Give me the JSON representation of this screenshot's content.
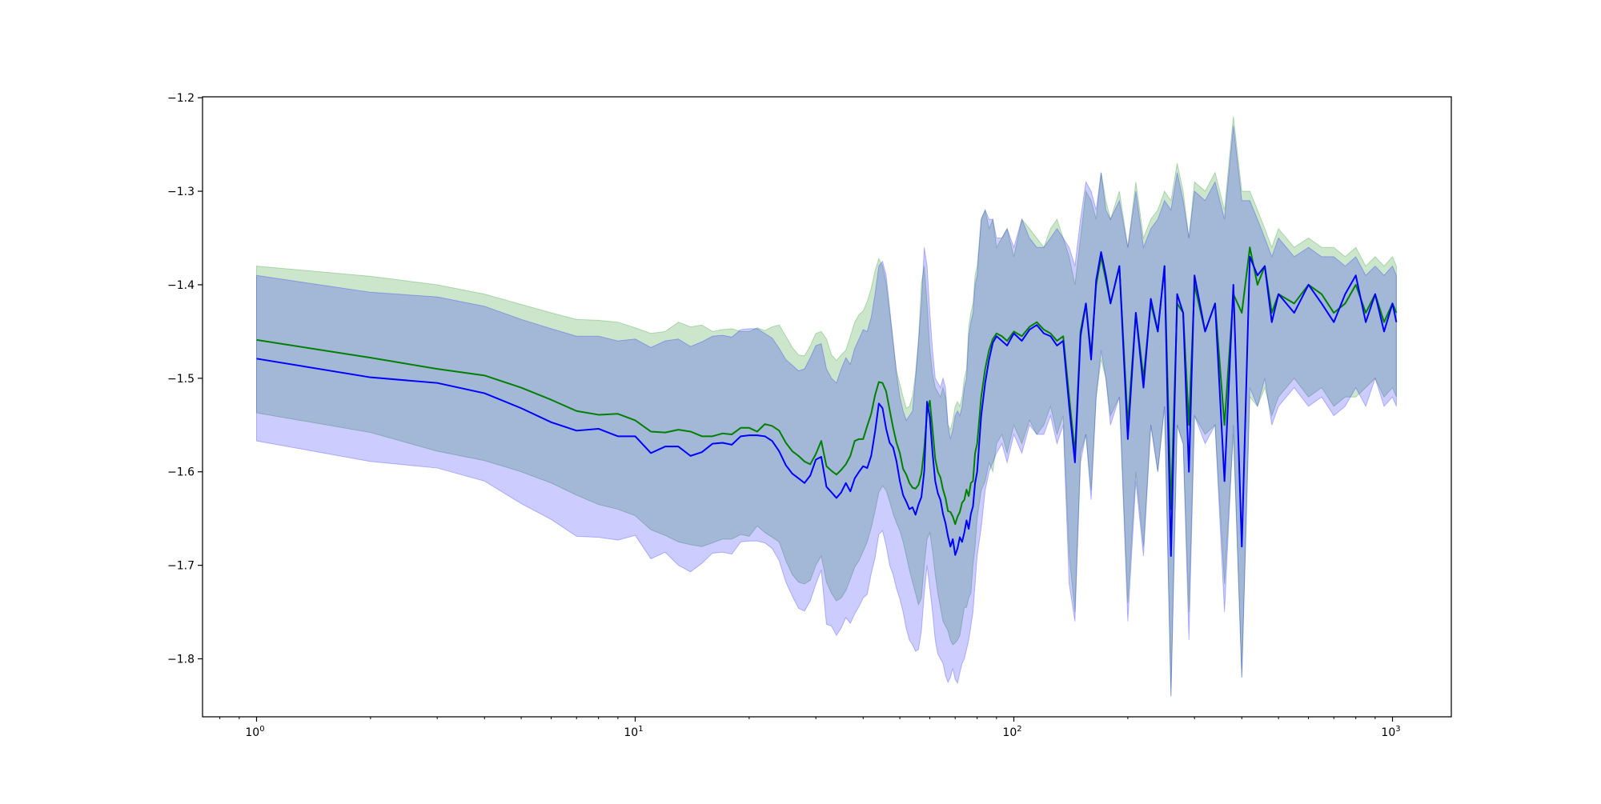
{
  "chart_data": {
    "type": "line",
    "title": "",
    "xlabel": "",
    "ylabel": "",
    "xscale": "log",
    "xlim": [
      0.72,
      1430
    ],
    "ylim": [
      -1.862,
      -1.199
    ],
    "grid": false,
    "x_ticks": [
      {
        "value": 1,
        "base": "10",
        "exp": "0"
      },
      {
        "value": 10,
        "base": "10",
        "exp": "1"
      },
      {
        "value": 100,
        "base": "10",
        "exp": "2"
      },
      {
        "value": 1000,
        "base": "10",
        "exp": "3"
      }
    ],
    "y_ticks": [
      {
        "value": -1.2,
        "label": "−1.2"
      },
      {
        "value": -1.3,
        "label": "−1.3"
      },
      {
        "value": -1.4,
        "label": "−1.4"
      },
      {
        "value": -1.5,
        "label": "−1.5"
      },
      {
        "value": -1.6,
        "label": "−1.6"
      },
      {
        "value": -1.7,
        "label": "−1.7"
      },
      {
        "value": -1.8,
        "label": "−1.8"
      }
    ],
    "series": [
      {
        "color": "#008000",
        "band_color": "#008000",
        "band_opacity": 0.2,
        "x": [
          1,
          2,
          3,
          4,
          5,
          6,
          7,
          8,
          9,
          10,
          11,
          12,
          13,
          14,
          15,
          16,
          17,
          18,
          19,
          20,
          21,
          22,
          23,
          24,
          25,
          26,
          27,
          28,
          29,
          30,
          31,
          32,
          33,
          34,
          35,
          36,
          37,
          38,
          39,
          40,
          41,
          42,
          43,
          44,
          45,
          46,
          47,
          48,
          49,
          50,
          51,
          52,
          53,
          54,
          55,
          56,
          57,
          58,
          59,
          60,
          61,
          62,
          63,
          64,
          65,
          66,
          67,
          68,
          69,
          70,
          71,
          72,
          73,
          74,
          75,
          76,
          77,
          78,
          79,
          80,
          82,
          84,
          86,
          88,
          90,
          93,
          96,
          100,
          105,
          110,
          115,
          120,
          125,
          130,
          135,
          140,
          145,
          150,
          155,
          160,
          165,
          170,
          175,
          180,
          190,
          200,
          210,
          220,
          230,
          240,
          250,
          260,
          270,
          280,
          290,
          300,
          320,
          340,
          360,
          380,
          400,
          420,
          440,
          460,
          480,
          500,
          550,
          600,
          650,
          700,
          750,
          800,
          850,
          900,
          950,
          1000,
          1024
        ],
        "mean": [
          -1.459,
          -1.478,
          -1.49,
          -1.497,
          -1.51,
          -1.523,
          -1.535,
          -1.539,
          -1.538,
          -1.545,
          -1.557,
          -1.558,
          -1.555,
          -1.557,
          -1.562,
          -1.562,
          -1.559,
          -1.56,
          -1.553,
          -1.553,
          -1.557,
          -1.549,
          -1.551,
          -1.556,
          -1.569,
          -1.578,
          -1.583,
          -1.589,
          -1.592,
          -1.581,
          -1.567,
          -1.594,
          -1.599,
          -1.603,
          -1.598,
          -1.592,
          -1.583,
          -1.567,
          -1.565,
          -1.565,
          -1.551,
          -1.538,
          -1.518,
          -1.504,
          -1.505,
          -1.514,
          -1.534,
          -1.553,
          -1.569,
          -1.58,
          -1.597,
          -1.603,
          -1.612,
          -1.617,
          -1.618,
          -1.614,
          -1.602,
          -1.575,
          -1.537,
          -1.524,
          -1.555,
          -1.586,
          -1.6,
          -1.606,
          -1.619,
          -1.628,
          -1.642,
          -1.643,
          -1.648,
          -1.656,
          -1.648,
          -1.643,
          -1.633,
          -1.63,
          -1.619,
          -1.626,
          -1.612,
          -1.61,
          -1.58,
          -1.57,
          -1.52,
          -1.49,
          -1.47,
          -1.458,
          -1.452,
          -1.455,
          -1.46,
          -1.45,
          -1.455,
          -1.445,
          -1.44,
          -1.448,
          -1.452,
          -1.46,
          -1.455,
          -1.52,
          -1.58,
          -1.45,
          -1.42,
          -1.475,
          -1.4,
          -1.37,
          -1.395,
          -1.42,
          -1.38,
          -1.55,
          -1.43,
          -1.5,
          -1.42,
          -1.45,
          -1.38,
          -1.64,
          -1.42,
          -1.43,
          -1.55,
          -1.4,
          -1.45,
          -1.42,
          -1.55,
          -1.41,
          -1.43,
          -1.36,
          -1.4,
          -1.38,
          -1.43,
          -1.41,
          -1.42,
          -1.4,
          -1.41,
          -1.43,
          -1.42,
          -1.4,
          -1.43,
          -1.41,
          -1.44,
          -1.42,
          -1.43
        ],
        "upper": [
          -1.38,
          -1.391,
          -1.4,
          -1.41,
          -1.421,
          -1.43,
          -1.437,
          -1.438,
          -1.44,
          -1.446,
          -1.452,
          -1.45,
          -1.44,
          -1.445,
          -1.443,
          -1.45,
          -1.448,
          -1.447,
          -1.45,
          -1.45,
          -1.446,
          -1.449,
          -1.445,
          -1.443,
          -1.455,
          -1.467,
          -1.475,
          -1.476,
          -1.465,
          -1.452,
          -1.45,
          -1.458,
          -1.475,
          -1.481,
          -1.475,
          -1.47,
          -1.455,
          -1.44,
          -1.432,
          -1.428,
          -1.418,
          -1.404,
          -1.385,
          -1.372,
          -1.38,
          -1.398,
          -1.43,
          -1.462,
          -1.492,
          -1.506,
          -1.52,
          -1.532,
          -1.53,
          -1.519,
          -1.495,
          -1.46,
          -1.398,
          -1.38,
          -1.42,
          -1.468,
          -1.495,
          -1.51,
          -1.515,
          -1.52,
          -1.51,
          -1.52,
          -1.55,
          -1.555,
          -1.545,
          -1.53,
          -1.525,
          -1.53,
          -1.52,
          -1.5,
          -1.49,
          -1.445,
          -1.43,
          -1.42,
          -1.39,
          -1.38,
          -1.33,
          -1.32,
          -1.34,
          -1.33,
          -1.36,
          -1.35,
          -1.34,
          -1.37,
          -1.33,
          -1.34,
          -1.35,
          -1.36,
          -1.34,
          -1.33,
          -1.35,
          -1.37,
          -1.4,
          -1.35,
          -1.3,
          -1.31,
          -1.33,
          -1.28,
          -1.31,
          -1.33,
          -1.3,
          -1.36,
          -1.29,
          -1.35,
          -1.33,
          -1.32,
          -1.3,
          -1.31,
          -1.27,
          -1.3,
          -1.35,
          -1.29,
          -1.3,
          -1.28,
          -1.32,
          -1.22,
          -1.3,
          -1.3,
          -1.32,
          -1.34,
          -1.36,
          -1.34,
          -1.36,
          -1.35,
          -1.36,
          -1.36,
          -1.37,
          -1.36,
          -1.38,
          -1.37,
          -1.38,
          -1.37,
          -1.38
        ],
        "lower": [
          -1.537,
          -1.558,
          -1.578,
          -1.588,
          -1.6,
          -1.612,
          -1.625,
          -1.635,
          -1.64,
          -1.647,
          -1.662,
          -1.668,
          -1.675,
          -1.678,
          -1.68,
          -1.676,
          -1.672,
          -1.672,
          -1.667,
          -1.669,
          -1.658,
          -1.665,
          -1.67,
          -1.675,
          -1.695,
          -1.71,
          -1.718,
          -1.72,
          -1.716,
          -1.7,
          -1.69,
          -1.718,
          -1.73,
          -1.738,
          -1.735,
          -1.727,
          -1.715,
          -1.702,
          -1.695,
          -1.685,
          -1.675,
          -1.66,
          -1.642,
          -1.622,
          -1.615,
          -1.62,
          -1.632,
          -1.645,
          -1.655,
          -1.663,
          -1.675,
          -1.69,
          -1.705,
          -1.718,
          -1.73,
          -1.742,
          -1.735,
          -1.7,
          -1.672,
          -1.665,
          -1.685,
          -1.71,
          -1.73,
          -1.745,
          -1.76,
          -1.765,
          -1.77,
          -1.78,
          -1.785,
          -1.783,
          -1.78,
          -1.775,
          -1.76,
          -1.745,
          -1.745,
          -1.735,
          -1.73,
          -1.7,
          -1.68,
          -1.65,
          -1.62,
          -1.61,
          -1.59,
          -1.6,
          -1.57,
          -1.56,
          -1.58,
          -1.55,
          -1.57,
          -1.545,
          -1.56,
          -1.55,
          -1.53,
          -1.56,
          -1.54,
          -1.69,
          -1.75,
          -1.58,
          -1.56,
          -1.62,
          -1.52,
          -1.48,
          -1.5,
          -1.54,
          -1.52,
          -1.74,
          -1.6,
          -1.68,
          -1.55,
          -1.6,
          -1.53,
          -1.84,
          -1.55,
          -1.57,
          -1.75,
          -1.54,
          -1.56,
          -1.55,
          -1.72,
          -1.56,
          -1.82,
          -1.52,
          -1.53,
          -1.51,
          -1.54,
          -1.52,
          -1.5,
          -1.52,
          -1.51,
          -1.53,
          -1.52,
          -1.52,
          -1.51,
          -1.5,
          -1.52,
          -1.51,
          -1.52
        ]
      },
      {
        "color": "#0000ff",
        "band_color": "#0000ff",
        "band_opacity": 0.2,
        "x": [
          1,
          2,
          3,
          4,
          5,
          6,
          7,
          8,
          9,
          10,
          11,
          12,
          13,
          14,
          15,
          16,
          17,
          18,
          19,
          20,
          21,
          22,
          23,
          24,
          25,
          26,
          27,
          28,
          29,
          30,
          31,
          32,
          33,
          34,
          35,
          36,
          37,
          38,
          39,
          40,
          41,
          42,
          43,
          44,
          45,
          46,
          47,
          48,
          49,
          50,
          51,
          52,
          53,
          54,
          55,
          56,
          57,
          58,
          59,
          60,
          61,
          62,
          63,
          64,
          65,
          66,
          67,
          68,
          69,
          70,
          71,
          72,
          73,
          74,
          75,
          76,
          77,
          78,
          79,
          80,
          82,
          84,
          86,
          88,
          90,
          93,
          96,
          100,
          105,
          110,
          115,
          120,
          125,
          130,
          135,
          140,
          145,
          150,
          155,
          160,
          165,
          170,
          175,
          180,
          190,
          200,
          210,
          220,
          230,
          240,
          250,
          260,
          270,
          280,
          290,
          300,
          320,
          340,
          360,
          380,
          400,
          420,
          440,
          460,
          480,
          500,
          550,
          600,
          650,
          700,
          750,
          800,
          850,
          900,
          950,
          1000,
          1024
        ],
        "mean": [
          -1.479,
          -1.499,
          -1.505,
          -1.516,
          -1.532,
          -1.547,
          -1.556,
          -1.554,
          -1.562,
          -1.562,
          -1.58,
          -1.573,
          -1.573,
          -1.583,
          -1.579,
          -1.57,
          -1.569,
          -1.571,
          -1.562,
          -1.561,
          -1.561,
          -1.562,
          -1.567,
          -1.578,
          -1.593,
          -1.602,
          -1.607,
          -1.612,
          -1.604,
          -1.587,
          -1.584,
          -1.616,
          -1.622,
          -1.628,
          -1.622,
          -1.612,
          -1.621,
          -1.607,
          -1.6,
          -1.594,
          -1.596,
          -1.583,
          -1.557,
          -1.527,
          -1.532,
          -1.554,
          -1.569,
          -1.574,
          -1.589,
          -1.61,
          -1.625,
          -1.632,
          -1.64,
          -1.638,
          -1.646,
          -1.635,
          -1.627,
          -1.599,
          -1.525,
          -1.542,
          -1.58,
          -1.61,
          -1.623,
          -1.63,
          -1.645,
          -1.655,
          -1.669,
          -1.68,
          -1.672,
          -1.689,
          -1.682,
          -1.67,
          -1.675,
          -1.665,
          -1.652,
          -1.661,
          -1.645,
          -1.637,
          -1.612,
          -1.6,
          -1.54,
          -1.505,
          -1.48,
          -1.462,
          -1.455,
          -1.46,
          -1.465,
          -1.452,
          -1.46,
          -1.448,
          -1.443,
          -1.452,
          -1.455,
          -1.465,
          -1.46,
          -1.53,
          -1.59,
          -1.455,
          -1.42,
          -1.48,
          -1.395,
          -1.365,
          -1.39,
          -1.42,
          -1.38,
          -1.565,
          -1.43,
          -1.51,
          -1.415,
          -1.45,
          -1.38,
          -1.69,
          -1.41,
          -1.43,
          -1.6,
          -1.39,
          -1.45,
          -1.42,
          -1.61,
          -1.4,
          -1.68,
          -1.37,
          -1.39,
          -1.38,
          -1.44,
          -1.41,
          -1.43,
          -1.4,
          -1.42,
          -1.44,
          -1.41,
          -1.39,
          -1.44,
          -1.41,
          -1.45,
          -1.42,
          -1.44
        ],
        "upper": [
          -1.39,
          -1.408,
          -1.413,
          -1.423,
          -1.437,
          -1.447,
          -1.455,
          -1.455,
          -1.46,
          -1.458,
          -1.467,
          -1.46,
          -1.458,
          -1.466,
          -1.461,
          -1.455,
          -1.454,
          -1.456,
          -1.448,
          -1.447,
          -1.447,
          -1.452,
          -1.457,
          -1.468,
          -1.48,
          -1.486,
          -1.492,
          -1.49,
          -1.478,
          -1.465,
          -1.463,
          -1.49,
          -1.5,
          -1.505,
          -1.49,
          -1.478,
          -1.485,
          -1.468,
          -1.458,
          -1.448,
          -1.45,
          -1.435,
          -1.41,
          -1.38,
          -1.375,
          -1.39,
          -1.425,
          -1.46,
          -1.495,
          -1.52,
          -1.535,
          -1.545,
          -1.54,
          -1.535,
          -1.5,
          -1.46,
          -1.42,
          -1.36,
          -1.38,
          -1.43,
          -1.47,
          -1.5,
          -1.505,
          -1.51,
          -1.5,
          -1.51,
          -1.55,
          -1.565,
          -1.555,
          -1.54,
          -1.535,
          -1.54,
          -1.53,
          -1.51,
          -1.5,
          -1.455,
          -1.44,
          -1.43,
          -1.4,
          -1.39,
          -1.33,
          -1.32,
          -1.33,
          -1.33,
          -1.35,
          -1.35,
          -1.34,
          -1.36,
          -1.33,
          -1.35,
          -1.36,
          -1.36,
          -1.35,
          -1.34,
          -1.35,
          -1.36,
          -1.38,
          -1.33,
          -1.29,
          -1.3,
          -1.32,
          -1.28,
          -1.32,
          -1.33,
          -1.31,
          -1.36,
          -1.3,
          -1.36,
          -1.34,
          -1.33,
          -1.31,
          -1.32,
          -1.28,
          -1.31,
          -1.35,
          -1.3,
          -1.31,
          -1.29,
          -1.33,
          -1.23,
          -1.31,
          -1.31,
          -1.33,
          -1.35,
          -1.37,
          -1.35,
          -1.37,
          -1.36,
          -1.37,
          -1.37,
          -1.38,
          -1.37,
          -1.39,
          -1.38,
          -1.39,
          -1.38,
          -1.39
        ],
        "lower": [
          -1.567,
          -1.589,
          -1.596,
          -1.61,
          -1.634,
          -1.651,
          -1.669,
          -1.67,
          -1.673,
          -1.668,
          -1.693,
          -1.686,
          -1.7,
          -1.707,
          -1.698,
          -1.687,
          -1.686,
          -1.688,
          -1.675,
          -1.674,
          -1.674,
          -1.676,
          -1.682,
          -1.695,
          -1.718,
          -1.733,
          -1.746,
          -1.749,
          -1.738,
          -1.72,
          -1.705,
          -1.763,
          -1.765,
          -1.775,
          -1.767,
          -1.756,
          -1.762,
          -1.752,
          -1.744,
          -1.735,
          -1.731,
          -1.709,
          -1.692,
          -1.667,
          -1.663,
          -1.679,
          -1.7,
          -1.71,
          -1.725,
          -1.736,
          -1.75,
          -1.768,
          -1.78,
          -1.785,
          -1.792,
          -1.79,
          -1.77,
          -1.73,
          -1.7,
          -1.725,
          -1.75,
          -1.78,
          -1.795,
          -1.8,
          -1.805,
          -1.818,
          -1.825,
          -1.82,
          -1.81,
          -1.822,
          -1.826,
          -1.815,
          -1.805,
          -1.8,
          -1.79,
          -1.78,
          -1.765,
          -1.75,
          -1.72,
          -1.69,
          -1.66,
          -1.62,
          -1.6,
          -1.59,
          -1.58,
          -1.57,
          -1.59,
          -1.56,
          -1.58,
          -1.55,
          -1.56,
          -1.56,
          -1.54,
          -1.57,
          -1.55,
          -1.72,
          -1.76,
          -1.59,
          -1.56,
          -1.63,
          -1.52,
          -1.47,
          -1.5,
          -1.55,
          -1.52,
          -1.76,
          -1.61,
          -1.69,
          -1.55,
          -1.6,
          -1.53,
          -1.84,
          -1.55,
          -1.57,
          -1.78,
          -1.54,
          -1.57,
          -1.55,
          -1.75,
          -1.55,
          -1.82,
          -1.51,
          -1.53,
          -1.5,
          -1.55,
          -1.53,
          -1.51,
          -1.53,
          -1.52,
          -1.54,
          -1.53,
          -1.51,
          -1.53,
          -1.5,
          -1.53,
          -1.52,
          -1.53
        ]
      }
    ]
  }
}
